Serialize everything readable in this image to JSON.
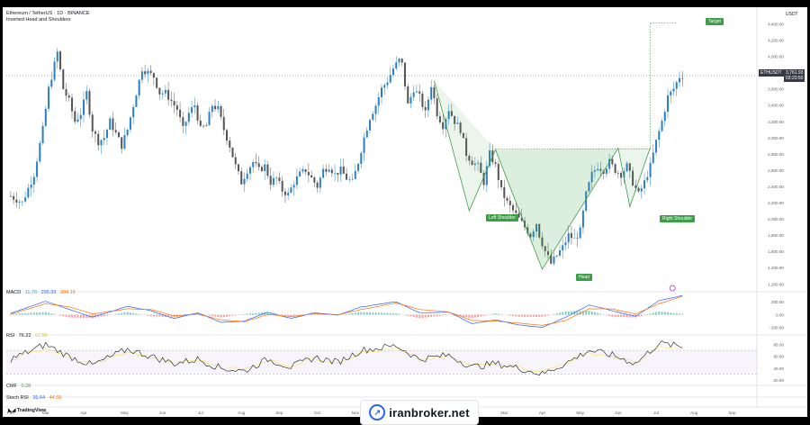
{
  "header": {
    "symbol_line": "Ethereum / TetherUS · 1D · BINANCE",
    "pattern": "Inverted Head and Shoulders",
    "axis_unit": "USDT",
    "price_symbol": "ETHUSDT",
    "price_value": "3,761.93",
    "price_timer": "03:23:50"
  },
  "indicators": {
    "macd_label": "MACD",
    "macd_v1": "11.76",
    "macd_v2": "295.93",
    "macd_v3": "284.16",
    "rsi_label": "RSI",
    "rsi_v1": "76.22",
    "rsi_v2": "67.56",
    "cmf_label": "CMF",
    "cmf_v1": "0.28",
    "stoch_label": "Stoch RSI",
    "stoch_v1": "35.64",
    "stoch_v2": "44.58"
  },
  "annotations": {
    "target": "Target",
    "left_shoulder": "Left Shoulder",
    "head": "Head",
    "right_shoulder": "Right Shoulder"
  },
  "footer": {
    "logo_text": "TradingView",
    "watermark": "iranbroker.net"
  },
  "colors": {
    "up": "#2a7fc7",
    "down": "#555555",
    "pattern": "#3e9e47",
    "macd_line": "#2962ff",
    "signal_line": "#ff6d00",
    "rsi_line": "#131722",
    "rsi_ma": "#f7e35b"
  },
  "chart_data": {
    "type": "candlestick",
    "y_unit": "USDT",
    "price_ticks": [
      "4,400.00",
      "4,200.00",
      "4,000.00",
      "3,800.00",
      "3,600.00",
      "3,400.00",
      "3,200.00",
      "3,000.00",
      "2,800.00",
      "2,600.00",
      "2,400.00",
      "2,200.00",
      "2,000.00",
      "1,800.00",
      "1,600.00",
      "1,400.00",
      "1,200.00"
    ],
    "price_tick_values": [
      4400,
      4200,
      4000,
      3800,
      3600,
      3400,
      3200,
      3000,
      2800,
      2600,
      2400,
      2200,
      2000,
      1800,
      1600,
      1400,
      1200
    ],
    "ylim": [
      1170,
      4560
    ],
    "months": [
      "Feb",
      "Mar",
      "Apr",
      "May",
      "Jun",
      "Jul",
      "Aug",
      "Sep",
      "Oct",
      "Nov",
      "Dec",
      "2025",
      "Feb",
      "Mar",
      "Apr",
      "May",
      "Jun",
      "Jul",
      "Aug",
      "Sep"
    ],
    "month_index": [
      0,
      12,
      25,
      39,
      52,
      65,
      79,
      92,
      105,
      118,
      131,
      144,
      157,
      169,
      182,
      195,
      208,
      221,
      234,
      247
    ],
    "close_points": [
      [
        0,
        2280
      ],
      [
        4,
        2200
      ],
      [
        8,
        2550
      ],
      [
        11,
        3100
      ],
      [
        13,
        3600
      ],
      [
        15,
        3900
      ],
      [
        16,
        4050
      ],
      [
        18,
        3600
      ],
      [
        20,
        3450
      ],
      [
        22,
        3200
      ],
      [
        24,
        3300
      ],
      [
        26,
        3550
      ],
      [
        28,
        3100
      ],
      [
        30,
        2950
      ],
      [
        32,
        3000
      ],
      [
        34,
        3200
      ],
      [
        36,
        3050
      ],
      [
        38,
        2900
      ],
      [
        40,
        3100
      ],
      [
        42,
        3400
      ],
      [
        44,
        3700
      ],
      [
        45,
        3850
      ],
      [
        47,
        3800
      ],
      [
        49,
        3750
      ],
      [
        51,
        3550
      ],
      [
        53,
        3550
      ],
      [
        55,
        3450
      ],
      [
        57,
        3350
      ],
      [
        59,
        3100
      ],
      [
        61,
        3300
      ],
      [
        63,
        3400
      ],
      [
        65,
        3100
      ],
      [
        67,
        3150
      ],
      [
        69,
        3400
      ],
      [
        71,
        3350
      ],
      [
        73,
        3100
      ],
      [
        75,
        2900
      ],
      [
        77,
        2650
      ],
      [
        79,
        2450
      ],
      [
        81,
        2600
      ],
      [
        83,
        2700
      ],
      [
        85,
        2600
      ],
      [
        87,
        2650
      ],
      [
        89,
        2450
      ],
      [
        91,
        2500
      ],
      [
        93,
        2350
      ],
      [
        95,
        2300
      ],
      [
        97,
        2450
      ],
      [
        99,
        2550
      ],
      [
        101,
        2600
      ],
      [
        103,
        2500
      ],
      [
        105,
        2400
      ],
      [
        107,
        2600
      ],
      [
        109,
        2650
      ],
      [
        111,
        2550
      ],
      [
        113,
        2600
      ],
      [
        115,
        2500
      ],
      [
        117,
        2450
      ],
      [
        119,
        2700
      ],
      [
        121,
        3000
      ],
      [
        123,
        3250
      ],
      [
        125,
        3400
      ],
      [
        127,
        3600
      ],
      [
        129,
        3700
      ],
      [
        131,
        3850
      ],
      [
        133,
        3950
      ],
      [
        134,
        3900
      ],
      [
        136,
        3400
      ],
      [
        138,
        3600
      ],
      [
        140,
        3500
      ],
      [
        142,
        3300
      ],
      [
        144,
        3650
      ],
      [
        146,
        3300
      ],
      [
        148,
        3150
      ],
      [
        150,
        3350
      ],
      [
        152,
        3200
      ],
      [
        154,
        3100
      ],
      [
        156,
        2800
      ],
      [
        158,
        2700
      ],
      [
        160,
        2650
      ],
      [
        162,
        2450
      ],
      [
        164,
        2800
      ],
      [
        166,
        2650
      ],
      [
        168,
        2350
      ],
      [
        170,
        2200
      ],
      [
        172,
        2100
      ],
      [
        174,
        2000
      ],
      [
        176,
        1900
      ],
      [
        178,
        1800
      ],
      [
        180,
        1950
      ],
      [
        181,
        1800
      ],
      [
        183,
        1600
      ],
      [
        185,
        1450
      ],
      [
        187,
        1550
      ],
      [
        189,
        1650
      ],
      [
        191,
        1800
      ],
      [
        193,
        1750
      ],
      [
        195,
        1850
      ],
      [
        197,
        2300
      ],
      [
        199,
        2550
      ],
      [
        201,
        2650
      ],
      [
        203,
        2600
      ],
      [
        205,
        2700
      ],
      [
        207,
        2600
      ],
      [
        209,
        2550
      ],
      [
        211,
        2650
      ],
      [
        213,
        2450
      ],
      [
        215,
        2300
      ],
      [
        217,
        2450
      ],
      [
        219,
        2650
      ],
      [
        221,
        2950
      ],
      [
        223,
        3200
      ],
      [
        225,
        3500
      ],
      [
        227,
        3600
      ],
      [
        229,
        3750
      ],
      [
        230,
        3762
      ]
    ],
    "n_candles": 231,
    "last_price": 3761.93,
    "pattern_points": {
      "start": [
        145,
        3700
      ],
      "left_shoulder": [
        157,
        2100
      ],
      "neck_left": [
        166,
        2850
      ],
      "head": [
        182,
        1380
      ],
      "neck_right": [
        208,
        2870
      ],
      "right_shoulder": [
        212,
        2150
      ],
      "breakout": [
        219,
        2880
      ],
      "target": [
        226,
        4410
      ]
    },
    "neckline_y": 2860,
    "macd_ticks": [
      "200.00",
      "0.00",
      "−200.00"
    ],
    "macd_tick_values": [
      200,
      0,
      -200
    ],
    "rsi_ticks": [
      "80.00",
      "60.00",
      "40.00",
      "20.00"
    ],
    "rsi_tick_values": [
      80,
      60,
      40,
      20
    ],
    "rsi_points": [
      [
        0,
        55
      ],
      [
        12,
        80
      ],
      [
        20,
        60
      ],
      [
        28,
        45
      ],
      [
        40,
        72
      ],
      [
        48,
        60
      ],
      [
        56,
        48
      ],
      [
        64,
        55
      ],
      [
        72,
        40
      ],
      [
        80,
        35
      ],
      [
        88,
        55
      ],
      [
        96,
        42
      ],
      [
        104,
        58
      ],
      [
        112,
        50
      ],
      [
        120,
        70
      ],
      [
        132,
        78
      ],
      [
        140,
        55
      ],
      [
        150,
        62
      ],
      [
        158,
        42
      ],
      [
        166,
        48
      ],
      [
        174,
        40
      ],
      [
        182,
        30
      ],
      [
        190,
        48
      ],
      [
        198,
        70
      ],
      [
        206,
        62
      ],
      [
        214,
        48
      ],
      [
        222,
        82
      ],
      [
        230,
        76
      ]
    ],
    "macd_points": [
      [
        0,
        20
      ],
      [
        12,
        210
      ],
      [
        20,
        80
      ],
      [
        28,
        -40
      ],
      [
        40,
        130
      ],
      [
        48,
        60
      ],
      [
        56,
        -60
      ],
      [
        64,
        30
      ],
      [
        72,
        -120
      ],
      [
        80,
        -100
      ],
      [
        88,
        40
      ],
      [
        96,
        -60
      ],
      [
        104,
        30
      ],
      [
        112,
        -10
      ],
      [
        120,
        120
      ],
      [
        132,
        200
      ],
      [
        140,
        30
      ],
      [
        150,
        40
      ],
      [
        158,
        -140
      ],
      [
        166,
        -80
      ],
      [
        174,
        -160
      ],
      [
        182,
        -200
      ],
      [
        190,
        -40
      ],
      [
        198,
        150
      ],
      [
        206,
        60
      ],
      [
        214,
        -30
      ],
      [
        222,
        220
      ],
      [
        230,
        296
      ]
    ],
    "signal_points": [
      [
        0,
        10
      ],
      [
        12,
        170
      ],
      [
        20,
        120
      ],
      [
        28,
        10
      ],
      [
        40,
        90
      ],
      [
        48,
        80
      ],
      [
        56,
        -20
      ],
      [
        64,
        10
      ],
      [
        72,
        -80
      ],
      [
        80,
        -110
      ],
      [
        88,
        0
      ],
      [
        96,
        -30
      ],
      [
        104,
        10
      ],
      [
        112,
        0
      ],
      [
        120,
        80
      ],
      [
        132,
        180
      ],
      [
        140,
        80
      ],
      [
        150,
        40
      ],
      [
        158,
        -90
      ],
      [
        166,
        -100
      ],
      [
        174,
        -130
      ],
      [
        182,
        -170
      ],
      [
        190,
        -90
      ],
      [
        198,
        90
      ],
      [
        206,
        90
      ],
      [
        214,
        10
      ],
      [
        222,
        170
      ],
      [
        230,
        284
      ]
    ]
  }
}
